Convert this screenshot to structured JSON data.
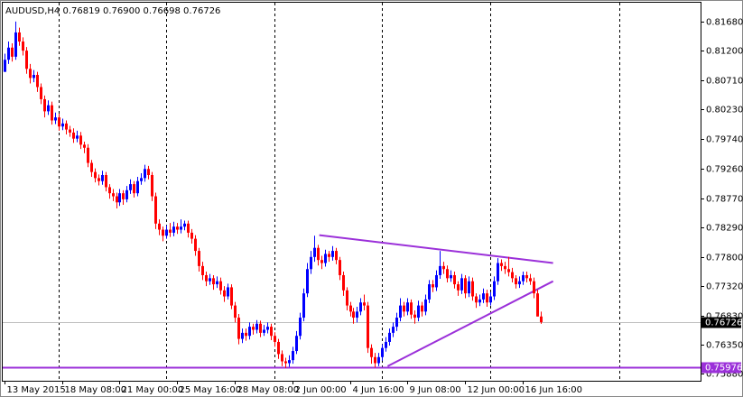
{
  "chart_data": {
    "type": "candlestick",
    "title": "AUDUSD,H4  0.76819 0.76900 0.76698 0.76726",
    "up_color": "#0000ff",
    "down_color": "#ff0000",
    "close": [
      0.8105,
      0.8125,
      0.811,
      0.815,
      0.8135,
      0.812,
      0.809,
      0.8075,
      0.808,
      0.806,
      0.804,
      0.802,
      0.803,
      0.8005,
      0.801,
      0.7995,
      0.8,
      0.799,
      0.7985,
      0.7975,
      0.798,
      0.7965,
      0.796,
      0.7935,
      0.792,
      0.791,
      0.7905,
      0.7915,
      0.7895,
      0.7885,
      0.788,
      0.787,
      0.7885,
      0.7875,
      0.789,
      0.79,
      0.7885,
      0.7905,
      0.791,
      0.7925,
      0.7915,
      0.788,
      0.7835,
      0.7825,
      0.7815,
      0.7825,
      0.782,
      0.783,
      0.7825,
      0.783,
      0.7835,
      0.782,
      0.781,
      0.779,
      0.7765,
      0.775,
      0.774,
      0.7745,
      0.7735,
      0.774,
      0.7725,
      0.7715,
      0.773,
      0.77,
      0.768,
      0.7645,
      0.7655,
      0.765,
      0.7665,
      0.766,
      0.767,
      0.7655,
      0.766,
      0.7665,
      0.765,
      0.764,
      0.762,
      0.7608,
      0.7605,
      0.761,
      0.7625,
      0.765,
      0.768,
      0.772,
      0.776,
      0.778,
      0.7795,
      0.7775,
      0.777,
      0.7785,
      0.778,
      0.779,
      0.7775,
      0.775,
      0.7725,
      0.77,
      0.769,
      0.768,
      0.769,
      0.7705,
      0.77,
      0.763,
      0.7615,
      0.7605,
      0.7615,
      0.763,
      0.764,
      0.7655,
      0.7665,
      0.768,
      0.77,
      0.769,
      0.7705,
      0.7685,
      0.768,
      0.77,
      0.769,
      0.771,
      0.7735,
      0.773,
      0.775,
      0.7765,
      0.776,
      0.7745,
      0.775,
      0.7735,
      0.7725,
      0.7745,
      0.772,
      0.774,
      0.7715,
      0.7705,
      0.771,
      0.772,
      0.7705,
      0.7715,
      0.774,
      0.777,
      0.7765,
      0.776,
      0.7755,
      0.7745,
      0.7735,
      0.774,
      0.775,
      0.7745,
      0.774,
      0.772,
      0.76819,
      0.76726
    ],
    "high": [
      0.8115,
      0.8135,
      0.8132,
      0.8168,
      0.8158,
      0.8142,
      0.8126,
      0.8098,
      0.8088,
      0.8085,
      0.8066,
      0.8046,
      0.8038,
      0.8036,
      0.8018,
      0.8016,
      0.8008,
      0.8005,
      0.7996,
      0.7992,
      0.7988,
      0.7986,
      0.797,
      0.7966,
      0.794,
      0.7926,
      0.7916,
      0.7922,
      0.792,
      0.79,
      0.7892,
      0.7886,
      0.7892,
      0.789,
      0.7897,
      0.7908,
      0.7905,
      0.7912,
      0.7918,
      0.7932,
      0.793,
      0.792,
      0.7886,
      0.7842,
      0.783,
      0.7832,
      0.7836,
      0.7838,
      0.7836,
      0.7842,
      0.784,
      0.784,
      0.7826,
      0.7816,
      0.7795,
      0.7772,
      0.7756,
      0.7752,
      0.775,
      0.7748,
      0.7746,
      0.7732,
      0.7736,
      0.7735,
      0.7706,
      0.7686,
      0.7662,
      0.7662,
      0.7672,
      0.767,
      0.7676,
      0.7675,
      0.7668,
      0.7672,
      0.767,
      0.7656,
      0.7645,
      0.7626,
      0.7614,
      0.7618,
      0.7632,
      0.7658,
      0.7688,
      0.7728,
      0.777,
      0.779,
      0.7815,
      0.78,
      0.7782,
      0.7792,
      0.779,
      0.7798,
      0.7795,
      0.778,
      0.7756,
      0.773,
      0.7706,
      0.7696,
      0.7698,
      0.7712,
      0.7718,
      0.7706,
      0.7636,
      0.7622,
      0.7622,
      0.7636,
      0.7648,
      0.7662,
      0.7672,
      0.7688,
      0.7712,
      0.7706,
      0.7712,
      0.771,
      0.7692,
      0.7708,
      0.7706,
      0.7718,
      0.7742,
      0.7742,
      0.7758,
      0.779,
      0.7772,
      0.7766,
      0.7758,
      0.7756,
      0.774,
      0.7752,
      0.775,
      0.7748,
      0.7746,
      0.772,
      0.7718,
      0.7728,
      0.7726,
      0.7722,
      0.7748,
      0.7778,
      0.7776,
      0.7772,
      0.778,
      0.7762,
      0.775,
      0.7748,
      0.7756,
      0.7756,
      0.7752,
      0.7746,
      0.7726,
      0.769
    ],
    "low": [
      0.8085,
      0.8098,
      0.8102,
      0.8105,
      0.8128,
      0.8112,
      0.8082,
      0.8066,
      0.8068,
      0.8052,
      0.8032,
      0.801,
      0.8014,
      0.7998,
      0.7999,
      0.7988,
      0.7989,
      0.7982,
      0.7978,
      0.7968,
      0.7969,
      0.7958,
      0.7951,
      0.7928,
      0.7912,
      0.7903,
      0.7898,
      0.7899,
      0.7888,
      0.7876,
      0.7872,
      0.786,
      0.7864,
      0.7866,
      0.787,
      0.7884,
      0.7878,
      0.788,
      0.7899,
      0.7904,
      0.7908,
      0.7872,
      0.7826,
      0.7816,
      0.7806,
      0.781,
      0.7813,
      0.7814,
      0.7818,
      0.7819,
      0.7824,
      0.7812,
      0.7802,
      0.7782,
      0.7756,
      0.7742,
      0.7732,
      0.7734,
      0.7726,
      0.7729,
      0.7718,
      0.7706,
      0.771,
      0.7694,
      0.7672,
      0.7636,
      0.7638,
      0.7642,
      0.7644,
      0.7652,
      0.7654,
      0.7648,
      0.765,
      0.7654,
      0.7643,
      0.7632,
      0.7612,
      0.76,
      0.7597,
      0.7599,
      0.7604,
      0.762,
      0.7644,
      0.7674,
      0.7714,
      0.7752,
      0.7772,
      0.7766,
      0.776,
      0.7764,
      0.7772,
      0.7774,
      0.7768,
      0.7742,
      0.7716,
      0.7692,
      0.7682,
      0.767,
      0.7672,
      0.7684,
      0.7692,
      0.7622,
      0.7604,
      0.7598,
      0.76,
      0.7609,
      0.7624,
      0.7634,
      0.7648,
      0.7658,
      0.7674,
      0.7682,
      0.7684,
      0.7678,
      0.767,
      0.7674,
      0.7682,
      0.7684,
      0.7704,
      0.7722,
      0.7724,
      0.7744,
      0.7752,
      0.7738,
      0.7739,
      0.7728,
      0.7716,
      0.7719,
      0.7712,
      0.7714,
      0.7708,
      0.7696,
      0.7699,
      0.7704,
      0.7698,
      0.77,
      0.7709,
      0.7734,
      0.7757,
      0.7752,
      0.7748,
      0.7738,
      0.7728,
      0.7729,
      0.7734,
      0.7738,
      0.7734,
      0.7712,
      0.7682,
      0.76698
    ],
    "ylim": [
      0.7576,
      0.8199
    ],
    "yticks": [
      {
        "value": 0.8168,
        "label": "0.81680"
      },
      {
        "value": 0.812,
        "label": "0.81200"
      },
      {
        "value": 0.8071,
        "label": "0.80710"
      },
      {
        "value": 0.8023,
        "label": "0.80230"
      },
      {
        "value": 0.7974,
        "label": "0.79740"
      },
      {
        "value": 0.7926,
        "label": "0.79260"
      },
      {
        "value": 0.7877,
        "label": "0.78770"
      },
      {
        "value": 0.7829,
        "label": "0.78290"
      },
      {
        "value": 0.778,
        "label": "0.77800"
      },
      {
        "value": 0.7732,
        "label": "0.77320"
      },
      {
        "value": 0.7683,
        "label": "0.76830"
      },
      {
        "value": 0.7635,
        "label": "0.76350"
      },
      {
        "value": 0.7588,
        "label": "0.75880"
      }
    ],
    "xlim": [
      -0.5,
      193.5
    ],
    "xticks": [
      {
        "value": 0,
        "label": "13 May 2015"
      },
      {
        "value": 16,
        "label": "18 May 08:00"
      },
      {
        "value": 32,
        "label": "21 May 00:00"
      },
      {
        "value": 48,
        "label": "25 May 16:00"
      },
      {
        "value": 64,
        "label": "28 May 08:00"
      },
      {
        "value": 80,
        "label": "2 Jun 00:00"
      },
      {
        "value": 96,
        "label": "4 Jun 16:00"
      },
      {
        "value": 112,
        "label": "9 Jun 08:00"
      },
      {
        "value": 128,
        "label": "12 Jun 00:00"
      },
      {
        "value": 144,
        "label": "16 Jun 16:00"
      }
    ],
    "xgrid": [
      15,
      45,
      75,
      105,
      135,
      171
    ],
    "hlines": [
      {
        "value": 0.76726,
        "label": "0.76726",
        "color": "#c0c0c0",
        "label_bg": "#000000"
      },
      {
        "value": 0.75976,
        "label": "0.75976",
        "color": "#9b30d9",
        "label_bg": "#9b30d9"
      }
    ],
    "trendlines": [
      {
        "x": [
          87.5,
          152.5
        ],
        "y": [
          0.7816,
          0.777
        ],
        "color": "#9b30d9"
      },
      {
        "x": [
          106.5,
          152.5
        ],
        "y": [
          0.76,
          0.774
        ],
        "color": "#9b30d9"
      }
    ]
  }
}
